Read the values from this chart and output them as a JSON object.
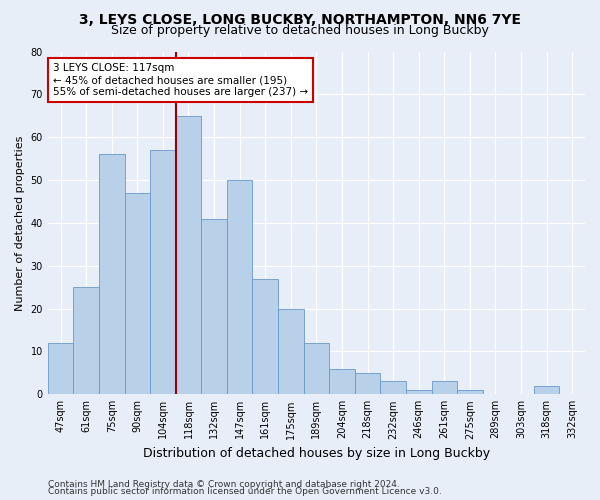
{
  "title1": "3, LEYS CLOSE, LONG BUCKBY, NORTHAMPTON, NN6 7YE",
  "title2": "Size of property relative to detached houses in Long Buckby",
  "xlabel": "Distribution of detached houses by size in Long Buckby",
  "ylabel": "Number of detached properties",
  "categories": [
    "47sqm",
    "61sqm",
    "75sqm",
    "90sqm",
    "104sqm",
    "118sqm",
    "132sqm",
    "147sqm",
    "161sqm",
    "175sqm",
    "189sqm",
    "204sqm",
    "218sqm",
    "232sqm",
    "246sqm",
    "261sqm",
    "275sqm",
    "289sqm",
    "303sqm",
    "318sqm",
    "332sqm"
  ],
  "values": [
    12,
    25,
    56,
    47,
    57,
    65,
    41,
    50,
    27,
    20,
    12,
    6,
    5,
    3,
    1,
    3,
    1,
    0,
    0,
    2,
    0
  ],
  "bar_color": "#b8d0e8",
  "bar_edge_color": "#6699cc",
  "highlight_bar_index": 5,
  "vline_color": "#990000",
  "annotation_line1": "3 LEYS CLOSE: 117sqm",
  "annotation_line2": "← 45% of detached houses are smaller (195)",
  "annotation_line3": "55% of semi-detached houses are larger (237) →",
  "annotation_box_color": "white",
  "annotation_box_edgecolor": "#cc0000",
  "ylim": [
    0,
    80
  ],
  "yticks": [
    0,
    10,
    20,
    30,
    40,
    50,
    60,
    70,
    80
  ],
  "footer1": "Contains HM Land Registry data © Crown copyright and database right 2024.",
  "footer2": "Contains public sector information licensed under the Open Government Licence v3.0.",
  "bg_color": "#e8eef8",
  "grid_color": "#ffffff",
  "title1_fontsize": 10,
  "title2_fontsize": 9,
  "xlabel_fontsize": 9,
  "ylabel_fontsize": 8,
  "tick_fontsize": 7,
  "annotation_fontsize": 7.5,
  "footer_fontsize": 6.5
}
